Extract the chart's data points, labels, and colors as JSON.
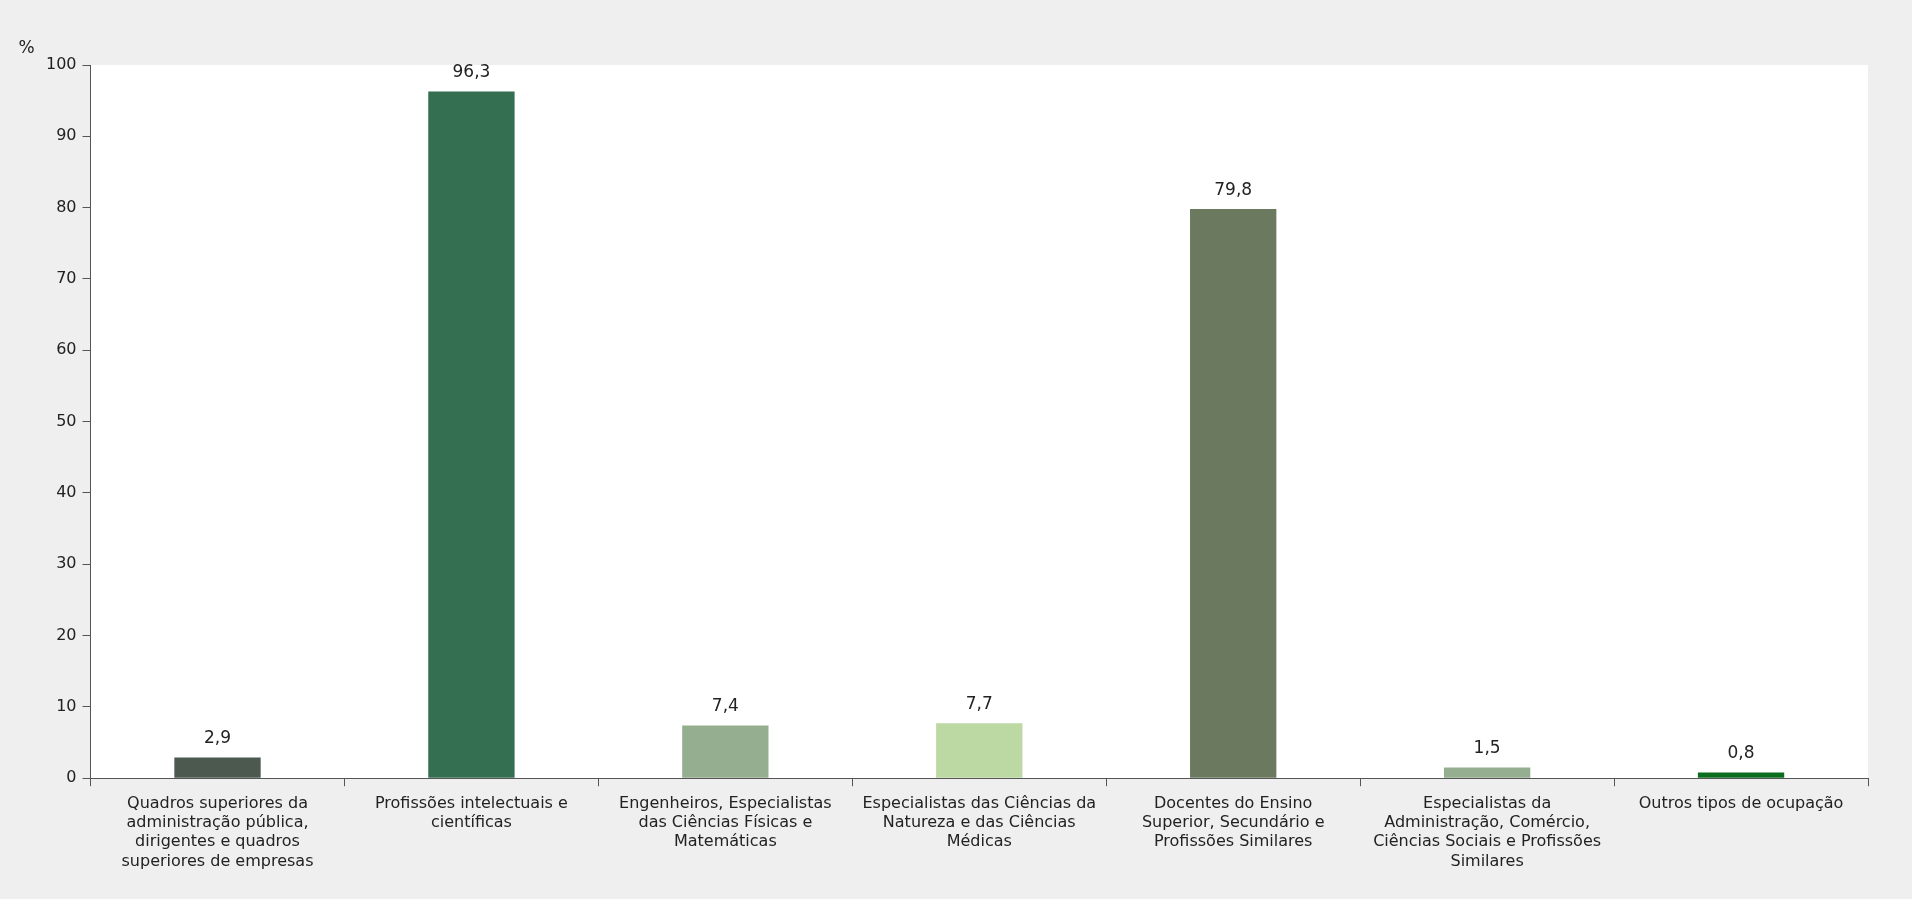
{
  "chart_data": {
    "type": "bar",
    "ylabel": "%",
    "categories": [
      "Quadros superiores da administração pública, dirigentes e quadros superiores de empresas",
      "Profissões intelectuais e científicas",
      "Engenheiros, Especialistas das Ciências Físicas e Matemáticas",
      "Especialistas das Ciências da Natureza e das Ciências Médicas",
      "Docentes do Ensino Superior, Secundário e Profissões Similares",
      "Especialistas da Administração, Comércio, Ciências Sociais e Profissões Similares",
      "Outros tipos de ocupação"
    ],
    "values": [
      2.9,
      96.3,
      7.4,
      7.7,
      79.8,
      1.5,
      0.8
    ],
    "colors": [
      "#4b594f",
      "#336f50",
      "#95ae8f",
      "#bcd9a3",
      "#6b7a5f",
      "#95ae8f",
      "#0b6e1f"
    ],
    "value_labels": [
      "2,9",
      "96,3",
      "7,4",
      "7,7",
      "79,8",
      "1,5",
      "0,8"
    ],
    "ylim": [
      0,
      100
    ],
    "yticks": [
      0,
      10,
      20,
      30,
      40,
      50,
      60,
      70,
      80,
      90,
      100
    ],
    "grid": false,
    "legend": false
  }
}
